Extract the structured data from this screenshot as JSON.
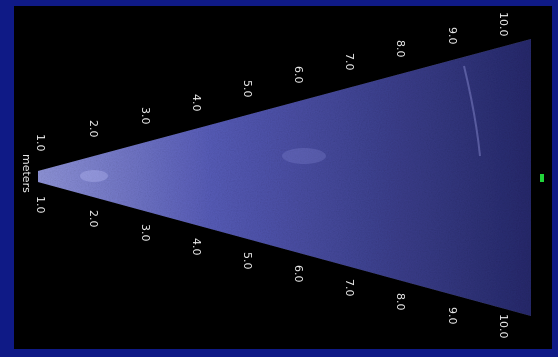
{
  "scale": {
    "unit_label": "meters",
    "upper_ticks": [
      "1.0",
      "2.0",
      "3.0",
      "4.0",
      "5.0",
      "6.0",
      "7.0",
      "8.0",
      "9.0",
      "10.0"
    ],
    "lower_ticks": [
      "1.0",
      "2.0",
      "3.0",
      "4.0",
      "5.0",
      "6.0",
      "7.0",
      "8.0",
      "9.0",
      "10.0"
    ]
  },
  "colors": {
    "frame": "#0f1a86",
    "screen": "#000000",
    "sonar_fill": "#5a5fc8",
    "marker": "#21d43a",
    "text": "#e8e8e8"
  }
}
